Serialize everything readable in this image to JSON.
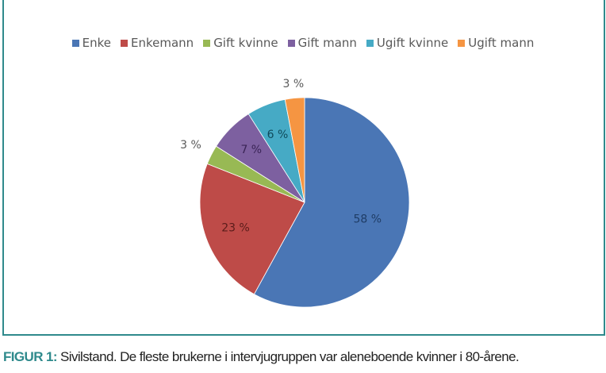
{
  "chart_data": {
    "type": "pie",
    "title": "",
    "categories": [
      "Enke",
      "Enkemann",
      "Gift kvinne",
      "Gift mann",
      "Ugift kvinne",
      "Ugift mann"
    ],
    "values": [
      58,
      23,
      3,
      7,
      6,
      3
    ],
    "labels": [
      "58 %",
      "23 %",
      "3 %",
      "7 %",
      "6 %",
      "3 %"
    ],
    "colors": [
      "#4a76b5",
      "#be4b48",
      "#98b954",
      "#7d60a0",
      "#46aac5",
      "#f59542"
    ],
    "legend_position": "top",
    "unit": "%"
  },
  "legend": {
    "items": [
      {
        "label": "Enke",
        "color": "#4a76b5"
      },
      {
        "label": "Enkemann",
        "color": "#be4b48"
      },
      {
        "label": "Gift kvinne",
        "color": "#98b954"
      },
      {
        "label": "Gift mann",
        "color": "#7d60a0"
      },
      {
        "label": "Ugift kvinne",
        "color": "#46aac5"
      },
      {
        "label": "Ugift mann",
        "color": "#f59542"
      }
    ]
  },
  "caption": {
    "label": "FIGUR 1:",
    "text": " Sivilstand. De fleste brukerne i intervjugruppen var aleneboende kvinner i 80-årene."
  },
  "accent_color": "#2f8a8c"
}
